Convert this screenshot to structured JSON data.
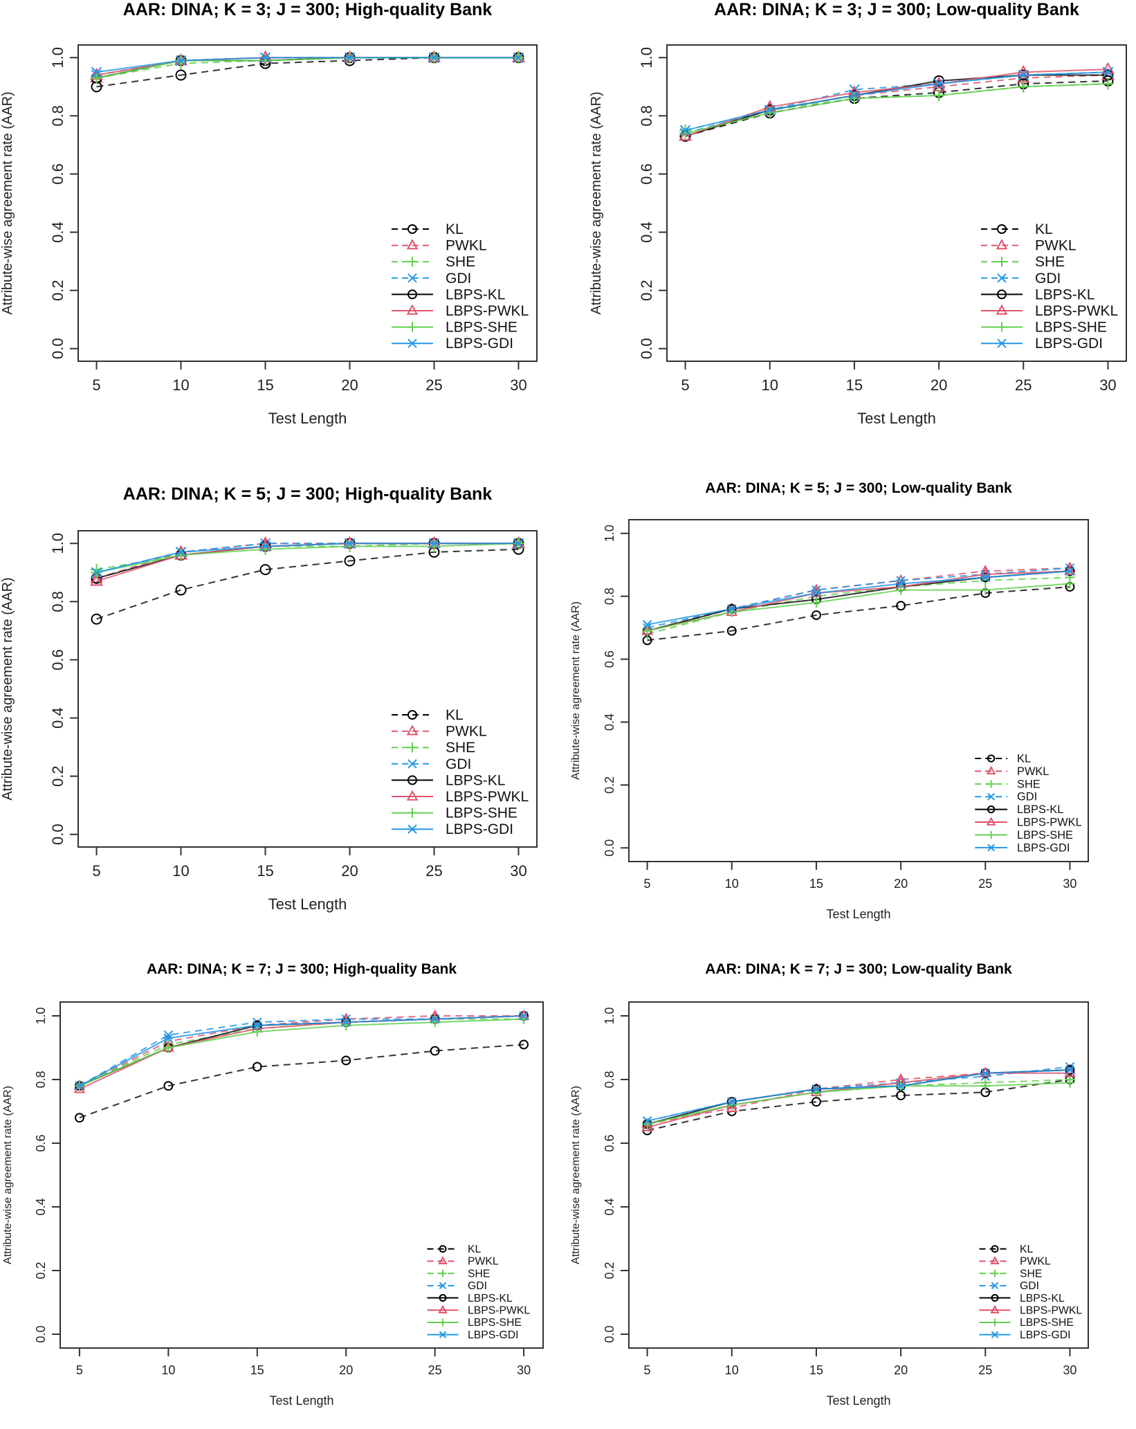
{
  "series_styles": [
    {
      "name": "KL",
      "color": "#000000",
      "dash": true,
      "marker": "circle"
    },
    {
      "name": "PWKL",
      "color": "#DF536B",
      "dash": true,
      "marker": "triangle"
    },
    {
      "name": "SHE",
      "color": "#61D04F",
      "dash": true,
      "marker": "plus"
    },
    {
      "name": "GDI",
      "color": "#2297E6",
      "dash": true,
      "marker": "cross"
    },
    {
      "name": "LBPS-KL",
      "color": "#000000",
      "dash": false,
      "marker": "circle"
    },
    {
      "name": "LBPS-PWKL",
      "color": "#DF536B",
      "dash": false,
      "marker": "triangle"
    },
    {
      "name": "LBPS-SHE",
      "color": "#61D04F",
      "dash": false,
      "marker": "plus"
    },
    {
      "name": "LBPS-GDI",
      "color": "#2297E6",
      "dash": false,
      "marker": "cross"
    }
  ],
  "chart_data": [
    {
      "type": "line",
      "title": "AAR: DINA; K = 3; J = 300; High-quality Bank",
      "xlabel": "Test Length",
      "ylabel": "Attribute-wise agreement rate (AAR)",
      "x": [
        5,
        10,
        15,
        20,
        25,
        30
      ],
      "ylim": [
        0,
        1
      ],
      "yticks": [
        "0.0",
        "0.2",
        "0.4",
        "0.6",
        "0.8",
        "1.0"
      ],
      "xticks": [
        "5",
        "10",
        "15",
        "20",
        "25",
        "30"
      ],
      "legend": "bottom-right",
      "series": [
        {
          "name": "KL",
          "values": [
            0.9,
            0.94,
            0.98,
            0.99,
            1.0,
            1.0
          ]
        },
        {
          "name": "PWKL",
          "values": [
            0.93,
            0.99,
            1.0,
            1.0,
            1.0,
            1.0
          ]
        },
        {
          "name": "SHE",
          "values": [
            0.93,
            0.98,
            0.99,
            1.0,
            1.0,
            1.0
          ]
        },
        {
          "name": "GDI",
          "values": [
            0.94,
            0.99,
            1.0,
            1.0,
            1.0,
            1.0
          ]
        },
        {
          "name": "LBPS-KL",
          "values": [
            0.93,
            0.99,
            0.99,
            1.0,
            1.0,
            1.0
          ]
        },
        {
          "name": "LBPS-PWKL",
          "values": [
            0.94,
            0.99,
            1.0,
            1.0,
            1.0,
            1.0
          ]
        },
        {
          "name": "LBPS-SHE",
          "values": [
            0.93,
            0.99,
            0.99,
            1.0,
            1.0,
            1.0
          ]
        },
        {
          "name": "LBPS-GDI",
          "values": [
            0.95,
            0.99,
            1.0,
            1.0,
            1.0,
            1.0
          ]
        }
      ]
    },
    {
      "type": "line",
      "title": "AAR: DINA; K = 3; J = 300; Low-quality Bank",
      "xlabel": "Test Length",
      "ylabel": "Attribute-wise agreement rate (AAR)",
      "x": [
        5,
        10,
        15,
        20,
        25,
        30
      ],
      "ylim": [
        0,
        1
      ],
      "yticks": [
        "0.0",
        "0.2",
        "0.4",
        "0.6",
        "0.8",
        "1.0"
      ],
      "xticks": [
        "5",
        "10",
        "15",
        "20",
        "25",
        "30"
      ],
      "legend": "bottom-right",
      "series": [
        {
          "name": "KL",
          "values": [
            0.73,
            0.81,
            0.86,
            0.88,
            0.91,
            0.92
          ]
        },
        {
          "name": "PWKL",
          "values": [
            0.73,
            0.82,
            0.87,
            0.9,
            0.93,
            0.94
          ]
        },
        {
          "name": "SHE",
          "values": [
            0.75,
            0.82,
            0.86,
            0.87,
            0.9,
            0.91
          ]
        },
        {
          "name": "GDI",
          "values": [
            0.74,
            0.82,
            0.89,
            0.91,
            0.94,
            0.95
          ]
        },
        {
          "name": "LBPS-KL",
          "values": [
            0.73,
            0.82,
            0.87,
            0.92,
            0.94,
            0.94
          ]
        },
        {
          "name": "LBPS-PWKL",
          "values": [
            0.73,
            0.83,
            0.88,
            0.91,
            0.95,
            0.96
          ]
        },
        {
          "name": "LBPS-SHE",
          "values": [
            0.74,
            0.81,
            0.86,
            0.87,
            0.9,
            0.91
          ]
        },
        {
          "name": "LBPS-GDI",
          "values": [
            0.75,
            0.82,
            0.87,
            0.91,
            0.94,
            0.95
          ]
        }
      ]
    },
    {
      "type": "line",
      "title": "AAR: DINA; K = 5; J = 300; High-quality Bank",
      "xlabel": "Test Length",
      "ylabel": "Attribute-wise agreement rate (AAR)",
      "x": [
        5,
        10,
        15,
        20,
        25,
        30
      ],
      "ylim": [
        0,
        1
      ],
      "yticks": [
        "0.0",
        "0.2",
        "0.4",
        "0.6",
        "0.8",
        "1.0"
      ],
      "xticks": [
        "5",
        "10",
        "15",
        "20",
        "25",
        "30"
      ],
      "legend": "bottom-right",
      "series": [
        {
          "name": "KL",
          "values": [
            0.74,
            0.84,
            0.91,
            0.94,
            0.97,
            0.98
          ]
        },
        {
          "name": "PWKL",
          "values": [
            0.88,
            0.97,
            1.0,
            1.0,
            1.0,
            1.0
          ]
        },
        {
          "name": "SHE",
          "values": [
            0.91,
            0.96,
            0.99,
            0.99,
            1.0,
            1.0
          ]
        },
        {
          "name": "GDI",
          "values": [
            0.9,
            0.97,
            1.0,
            1.0,
            1.0,
            1.0
          ]
        },
        {
          "name": "LBPS-KL",
          "values": [
            0.88,
            0.96,
            0.99,
            1.0,
            1.0,
            1.0
          ]
        },
        {
          "name": "LBPS-PWKL",
          "values": [
            0.87,
            0.96,
            0.99,
            1.0,
            1.0,
            1.0
          ]
        },
        {
          "name": "LBPS-SHE",
          "values": [
            0.9,
            0.96,
            0.98,
            0.99,
            0.99,
            1.0
          ]
        },
        {
          "name": "LBPS-GDI",
          "values": [
            0.9,
            0.97,
            0.99,
            1.0,
            1.0,
            1.0
          ]
        }
      ]
    },
    {
      "type": "line",
      "title": "AAR: DINA; K = 5; J = 300; Low-quality Bank",
      "xlabel": "Test Length",
      "ylabel": "Attribute-wise agreement rate (AAR)",
      "x": [
        5,
        10,
        15,
        20,
        25,
        30
      ],
      "ylim": [
        0,
        1
      ],
      "yticks": [
        "0.0",
        "0.2",
        "0.4",
        "0.6",
        "0.8",
        "1.0"
      ],
      "xticks": [
        "5",
        "10",
        "15",
        "20",
        "25",
        "30"
      ],
      "legend": "bottom-right",
      "series": [
        {
          "name": "KL",
          "values": [
            0.66,
            0.69,
            0.74,
            0.77,
            0.81,
            0.83
          ]
        },
        {
          "name": "PWKL",
          "values": [
            0.69,
            0.76,
            0.82,
            0.85,
            0.88,
            0.89
          ]
        },
        {
          "name": "SHE",
          "values": [
            0.68,
            0.75,
            0.8,
            0.83,
            0.85,
            0.86
          ]
        },
        {
          "name": "GDI",
          "values": [
            0.7,
            0.76,
            0.82,
            0.85,
            0.87,
            0.89
          ]
        },
        {
          "name": "LBPS-KL",
          "values": [
            0.69,
            0.76,
            0.79,
            0.83,
            0.86,
            0.88
          ]
        },
        {
          "name": "LBPS-PWKL",
          "values": [
            0.69,
            0.75,
            0.81,
            0.83,
            0.87,
            0.88
          ]
        },
        {
          "name": "LBPS-SHE",
          "values": [
            0.69,
            0.75,
            0.78,
            0.82,
            0.82,
            0.84
          ]
        },
        {
          "name": "LBPS-GDI",
          "values": [
            0.71,
            0.76,
            0.81,
            0.84,
            0.86,
            0.88
          ]
        }
      ]
    },
    {
      "type": "line",
      "title": "AAR: DINA; K = 7; J = 300; High-quality Bank",
      "xlabel": "Test Length",
      "ylabel": "Attribute-wise agreement rate (AAR)",
      "x": [
        5,
        10,
        15,
        20,
        25,
        30
      ],
      "ylim": [
        0,
        1
      ],
      "yticks": [
        "0.0",
        "0.2",
        "0.4",
        "0.6",
        "0.8",
        "1.0"
      ],
      "xticks": [
        "5",
        "10",
        "15",
        "20",
        "25",
        "30"
      ],
      "legend": "bottom-right",
      "series": [
        {
          "name": "KL",
          "values": [
            0.68,
            0.78,
            0.84,
            0.86,
            0.89,
            0.91
          ]
        },
        {
          "name": "PWKL",
          "values": [
            0.78,
            0.92,
            0.97,
            0.99,
            1.0,
            1.0
          ]
        },
        {
          "name": "SHE",
          "values": [
            0.78,
            0.91,
            0.96,
            0.98,
            0.99,
            0.99
          ]
        },
        {
          "name": "GDI",
          "values": [
            0.78,
            0.94,
            0.98,
            0.99,
            0.99,
            1.0
          ]
        },
        {
          "name": "LBPS-KL",
          "values": [
            0.78,
            0.9,
            0.97,
            0.98,
            0.99,
            1.0
          ]
        },
        {
          "name": "LBPS-PWKL",
          "values": [
            0.77,
            0.9,
            0.96,
            0.98,
            0.99,
            1.0
          ]
        },
        {
          "name": "LBPS-SHE",
          "values": [
            0.78,
            0.9,
            0.95,
            0.97,
            0.98,
            0.99
          ]
        },
        {
          "name": "LBPS-GDI",
          "values": [
            0.78,
            0.93,
            0.97,
            0.98,
            0.99,
            1.0
          ]
        }
      ]
    },
    {
      "type": "line",
      "title": "AAR: DINA; K = 7; J = 300; Low-quality Bank",
      "xlabel": "Test Length",
      "ylabel": "Attribute-wise agreement rate (AAR)",
      "x": [
        5,
        10,
        15,
        20,
        25,
        30
      ],
      "ylim": [
        0,
        1
      ],
      "yticks": [
        "0.0",
        "0.2",
        "0.4",
        "0.6",
        "0.8",
        "1.0"
      ],
      "xticks": [
        "5",
        "10",
        "15",
        "20",
        "25",
        "30"
      ],
      "legend": "bottom-right",
      "series": [
        {
          "name": "KL",
          "values": [
            0.64,
            0.7,
            0.73,
            0.75,
            0.76,
            0.8
          ]
        },
        {
          "name": "PWKL",
          "values": [
            0.66,
            0.71,
            0.77,
            0.8,
            0.82,
            0.83
          ]
        },
        {
          "name": "SHE",
          "values": [
            0.66,
            0.72,
            0.76,
            0.78,
            0.79,
            0.8
          ]
        },
        {
          "name": "GDI",
          "values": [
            0.67,
            0.73,
            0.77,
            0.79,
            0.81,
            0.84
          ]
        },
        {
          "name": "LBPS-KL",
          "values": [
            0.66,
            0.73,
            0.77,
            0.78,
            0.82,
            0.83
          ]
        },
        {
          "name": "LBPS-PWKL",
          "values": [
            0.65,
            0.72,
            0.76,
            0.79,
            0.82,
            0.82
          ]
        },
        {
          "name": "LBPS-SHE",
          "values": [
            0.66,
            0.72,
            0.76,
            0.78,
            0.78,
            0.79
          ]
        },
        {
          "name": "LBPS-GDI",
          "values": [
            0.67,
            0.73,
            0.77,
            0.78,
            0.82,
            0.83
          ]
        }
      ]
    }
  ]
}
